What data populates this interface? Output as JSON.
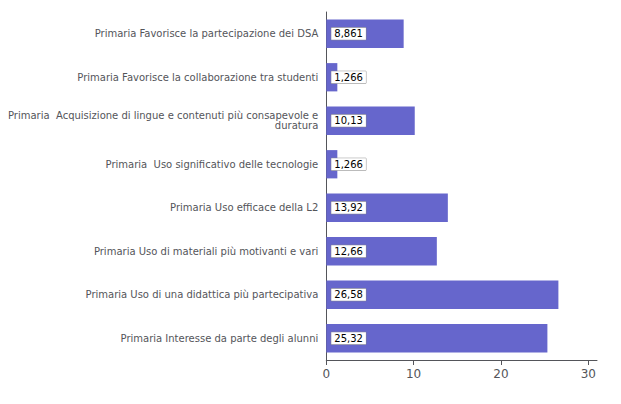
{
  "chart_data": {
    "type": "bar",
    "orientation": "horizontal",
    "categories": [
      "Primaria Interesse da parte degli alunni",
      "Primaria Uso di una didattica più partecipativa",
      "Primaria Uso di materiali più motivanti e vari",
      "Primaria Uso efficace della L2",
      "Primaria  Uso significativo delle tecnologie",
      "Primaria  Acquisizione di lingue e contenuti più consapevole e\nduratura",
      "Primaria Favorisce la collaborazione tra studenti",
      "Primaria Favorisce la partecipazione dei DSA"
    ],
    "values": [
      25.32,
      26.58,
      12.66,
      13.92,
      1.266,
      10.13,
      1.266,
      8.861
    ],
    "value_labels": [
      "25,32",
      "26,58",
      "12,66",
      "13,92",
      "1,266",
      "10,13",
      "1,266",
      "8,861"
    ],
    "data_labels": true,
    "color": "#6666cc",
    "xlim": [
      0,
      31
    ],
    "xticks": [
      0,
      10,
      20,
      30
    ],
    "grid": false
  }
}
